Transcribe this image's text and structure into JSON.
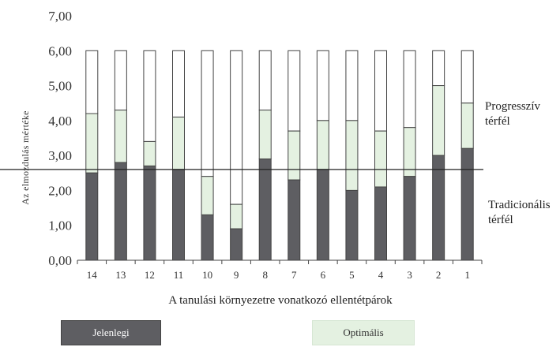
{
  "chart_data": {
    "type": "bar",
    "title": "",
    "xlabel": "A tanulási környezetre vonatkozó ellentétpárok",
    "ylabel": "Az elmozdulás mértéke",
    "ylim": [
      0,
      7
    ],
    "yticks": [
      "0,00",
      "1,00",
      "2,00",
      "3,00",
      "4,00",
      "5,00",
      "6,00",
      "7,00"
    ],
    "categories": [
      "14",
      "13",
      "12",
      "11",
      "10",
      "9",
      "8",
      "7",
      "6",
      "5",
      "4",
      "3",
      "2",
      "1"
    ],
    "total": [
      6,
      6,
      6,
      6,
      6,
      6,
      6,
      6,
      6,
      6,
      6,
      6,
      6,
      6
    ],
    "series": [
      {
        "name": "Jelenlegi",
        "values": [
          2.5,
          2.8,
          2.7,
          2.6,
          1.3,
          0.9,
          2.9,
          2.3,
          2.6,
          2.0,
          2.1,
          2.4,
          3.0,
          3.2
        ]
      },
      {
        "name": "Optimális",
        "values": [
          4.2,
          4.3,
          3.4,
          4.1,
          2.4,
          1.6,
          4.3,
          3.7,
          4.0,
          4.0,
          3.7,
          3.8,
          5.0,
          4.5
        ]
      }
    ],
    "reference_line": 2.6,
    "annotations": {
      "upper": [
        "Progresszív",
        "térfél"
      ],
      "lower": [
        "Tradicionális",
        "térfél"
      ]
    },
    "colors": {
      "jelenlegi": "#5e5e62",
      "optimalis": "#e4f1e1",
      "outline": "#444444"
    },
    "legend": "bottom"
  }
}
